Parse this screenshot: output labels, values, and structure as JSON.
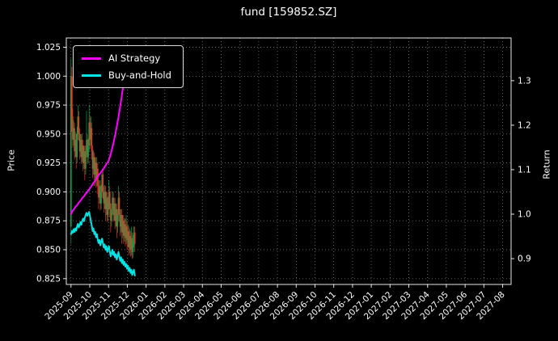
{
  "chart_data": {
    "type": "candlestick+line",
    "title": "fund [159852.SZ]",
    "background": "#000000",
    "text_color": "#ffffff",
    "grid_color": "#8c8c8c",
    "spine_color": "#e6e6e6",
    "left_axis": {
      "label": "Price",
      "ticks": [
        0.825,
        0.85,
        0.875,
        0.9,
        0.925,
        0.95,
        0.975,
        1.0,
        1.025
      ],
      "tick_labels": [
        "0.825",
        "0.850",
        "0.875",
        "0.900",
        "0.925",
        "0.950",
        "0.975",
        "1.000",
        "1.025"
      ],
      "range": [
        0.82,
        1.033
      ]
    },
    "right_axis": {
      "label": "Return",
      "ticks": [
        0.9,
        1.0,
        1.1,
        1.2,
        1.3
      ],
      "tick_labels": [
        "0.9",
        "1.0",
        "1.1",
        "1.2",
        "1.3"
      ],
      "range": [
        0.842,
        1.396
      ]
    },
    "x_axis": {
      "tick_labels": [
        "2025-09",
        "2025-10",
        "2025-11",
        "2025-12",
        "2026-01",
        "2026-02",
        "2026-03",
        "2026-04",
        "2026-05",
        "2026-06",
        "2026-07",
        "2026-08",
        "2026-09",
        "2026-10",
        "2026-11",
        "2026-12",
        "2027-01",
        "2027-02",
        "2027-03",
        "2027-04",
        "2027-05",
        "2027-06",
        "2027-07",
        "2027-08"
      ],
      "tick_positions": [
        0,
        1,
        2,
        3,
        4,
        5,
        6,
        7,
        8,
        9,
        10,
        11,
        12,
        13,
        14,
        15,
        16,
        17,
        18,
        19,
        20,
        21,
        22,
        23
      ],
      "range": [
        -0.25,
        23.45
      ],
      "grid": true
    },
    "legend": {
      "position": "upper-left",
      "entries": [
        {
          "label": "AI Strategy",
          "color": "#ff00ff"
        },
        {
          "label": "Buy-and-Hold",
          "color": "#00e5e5"
        }
      ]
    },
    "candles": {
      "up_color": "#00a94f",
      "down_color": "#f03524",
      "x_step_months": 0.04595,
      "ohlc": [
        [
          0.87,
          1.015,
          0.855,
          1.0
        ],
        [
          1.0,
          1.008,
          0.952,
          0.965
        ],
        [
          0.965,
          0.972,
          0.938,
          0.945
        ],
        [
          0.945,
          0.962,
          0.94,
          0.955
        ],
        [
          0.955,
          0.96,
          0.928,
          0.935
        ],
        [
          0.935,
          0.952,
          0.93,
          0.945
        ],
        [
          0.945,
          0.95,
          0.92,
          0.93
        ],
        [
          0.93,
          0.956,
          0.925,
          0.95
        ],
        [
          0.95,
          0.975,
          0.945,
          0.965
        ],
        [
          0.965,
          0.97,
          0.944,
          0.95
        ],
        [
          0.95,
          0.955,
          0.928,
          0.935
        ],
        [
          0.935,
          0.95,
          0.93,
          0.945
        ],
        [
          0.945,
          0.95,
          0.924,
          0.93
        ],
        [
          0.93,
          0.95,
          0.926,
          0.94
        ],
        [
          0.94,
          0.945,
          0.918,
          0.925
        ],
        [
          0.925,
          0.94,
          0.92,
          0.935
        ],
        [
          0.935,
          0.94,
          0.91,
          0.92
        ],
        [
          0.92,
          0.94,
          0.915,
          0.935
        ],
        [
          0.935,
          0.97,
          0.93,
          0.945
        ],
        [
          0.945,
          0.95,
          0.924,
          0.93
        ],
        [
          0.93,
          0.946,
          0.925,
          0.94
        ],
        [
          0.94,
          0.975,
          0.935,
          0.96
        ],
        [
          0.96,
          0.965,
          0.938,
          0.945
        ],
        [
          0.945,
          0.965,
          0.94,
          0.955
        ],
        [
          0.955,
          0.96,
          0.928,
          0.935
        ],
        [
          0.935,
          0.94,
          0.912,
          0.92
        ],
        [
          0.92,
          0.936,
          0.915,
          0.93
        ],
        [
          0.93,
          0.934,
          0.905,
          0.915
        ],
        [
          0.915,
          0.93,
          0.91,
          0.925
        ],
        [
          0.925,
          0.93,
          0.904,
          0.91
        ],
        [
          0.91,
          0.93,
          0.905,
          0.92
        ],
        [
          0.92,
          0.925,
          0.898,
          0.905
        ],
        [
          0.905,
          0.91,
          0.885,
          0.895
        ],
        [
          0.895,
          0.91,
          0.89,
          0.905
        ],
        [
          0.905,
          0.91,
          0.884,
          0.89
        ],
        [
          0.89,
          0.906,
          0.885,
          0.9
        ],
        [
          0.9,
          0.92,
          0.895,
          0.915
        ],
        [
          0.915,
          0.92,
          0.894,
          0.9
        ],
        [
          0.9,
          0.905,
          0.882,
          0.89
        ],
        [
          0.89,
          0.906,
          0.885,
          0.9
        ],
        [
          0.9,
          0.905,
          0.875,
          0.885
        ],
        [
          0.885,
          0.9,
          0.88,
          0.895
        ],
        [
          0.895,
          0.9,
          0.874,
          0.88
        ],
        [
          0.88,
          0.896,
          0.875,
          0.89
        ],
        [
          0.89,
          0.91,
          0.885,
          0.9
        ],
        [
          0.9,
          0.905,
          0.878,
          0.885
        ],
        [
          0.885,
          0.89,
          0.865,
          0.875
        ],
        [
          0.875,
          0.89,
          0.87,
          0.885
        ],
        [
          0.885,
          0.9,
          0.88,
          0.895
        ],
        [
          0.895,
          0.9,
          0.874,
          0.88
        ],
        [
          0.88,
          0.895,
          0.875,
          0.89
        ],
        [
          0.89,
          0.895,
          0.868,
          0.875
        ],
        [
          0.875,
          0.89,
          0.87,
          0.885
        ],
        [
          0.885,
          0.89,
          0.86,
          0.87
        ],
        [
          0.87,
          0.885,
          0.865,
          0.88
        ],
        [
          0.88,
          0.905,
          0.875,
          0.895
        ],
        [
          0.895,
          0.9,
          0.874,
          0.88
        ],
        [
          0.88,
          0.885,
          0.862,
          0.87
        ],
        [
          0.87,
          0.885,
          0.865,
          0.88
        ],
        [
          0.88,
          0.885,
          0.855,
          0.865
        ],
        [
          0.865,
          0.88,
          0.86,
          0.875
        ],
        [
          0.875,
          0.88,
          0.855,
          0.862
        ],
        [
          0.862,
          0.877,
          0.857,
          0.872
        ],
        [
          0.872,
          0.877,
          0.853,
          0.86
        ],
        [
          0.86,
          0.88,
          0.855,
          0.87
        ],
        [
          0.87,
          0.875,
          0.85,
          0.858
        ],
        [
          0.858,
          0.872,
          0.852,
          0.866
        ],
        [
          0.866,
          0.87,
          0.845,
          0.852
        ],
        [
          0.852,
          0.868,
          0.847,
          0.862
        ],
        [
          0.862,
          0.866,
          0.844,
          0.85
        ],
        [
          0.85,
          0.87,
          0.845,
          0.86
        ],
        [
          0.86,
          0.865,
          0.842,
          0.848
        ],
        [
          0.848,
          0.863,
          0.843,
          0.858
        ],
        [
          0.858,
          0.87,
          0.852,
          0.865
        ],
        [
          0.865,
          0.87,
          0.848,
          0.855
        ]
      ]
    },
    "series": [
      {
        "name": "AI Strategy",
        "color": "#ff00ff",
        "axis": "right",
        "values": [
          1.0,
          1.004,
          1.008,
          1.01,
          1.013,
          1.016,
          1.018,
          1.02,
          1.023,
          1.026,
          1.028,
          1.03,
          1.033,
          1.036,
          1.038,
          1.04,
          1.043,
          1.046,
          1.048,
          1.05,
          1.053,
          1.056,
          1.058,
          1.061,
          1.064,
          1.067,
          1.07,
          1.072,
          1.075,
          1.078,
          1.081,
          1.084,
          1.087,
          1.09,
          1.092,
          1.095,
          1.098,
          1.1,
          1.103,
          1.106,
          1.109,
          1.112,
          1.115,
          1.118,
          1.122,
          1.128,
          1.135,
          1.142,
          1.15,
          1.158,
          1.167,
          1.176,
          1.186,
          1.196,
          1.207,
          1.218,
          1.23,
          1.242,
          1.255,
          1.268,
          1.281,
          1.294,
          1.307,
          1.32,
          1.328,
          1.334,
          1.339,
          1.344,
          1.347,
          1.35,
          1.352,
          1.353,
          1.354,
          1.355,
          1.356
        ]
      },
      {
        "name": "Buy-and-Hold",
        "color": "#00e5e5",
        "axis": "right",
        "values": [
          0.955,
          0.962,
          0.958,
          0.966,
          0.96,
          0.968,
          0.963,
          0.972,
          0.978,
          0.97,
          0.975,
          0.982,
          0.976,
          0.985,
          0.99,
          0.984,
          0.992,
          0.998,
          1.003,
          0.996,
          1.001,
          1.005,
          0.995,
          0.985,
          0.975,
          0.962,
          0.968,
          0.955,
          0.96,
          0.948,
          0.955,
          0.942,
          0.935,
          0.942,
          0.93,
          0.938,
          0.945,
          0.935,
          0.925,
          0.932,
          0.92,
          0.928,
          0.915,
          0.922,
          0.928,
          0.916,
          0.905,
          0.912,
          0.92,
          0.908,
          0.915,
          0.903,
          0.91,
          0.898,
          0.905,
          0.915,
          0.905,
          0.895,
          0.903,
          0.89,
          0.898,
          0.886,
          0.893,
          0.882,
          0.888,
          0.877,
          0.884,
          0.872,
          0.879,
          0.868,
          0.875,
          0.863,
          0.87,
          0.875,
          0.862
        ]
      }
    ]
  }
}
